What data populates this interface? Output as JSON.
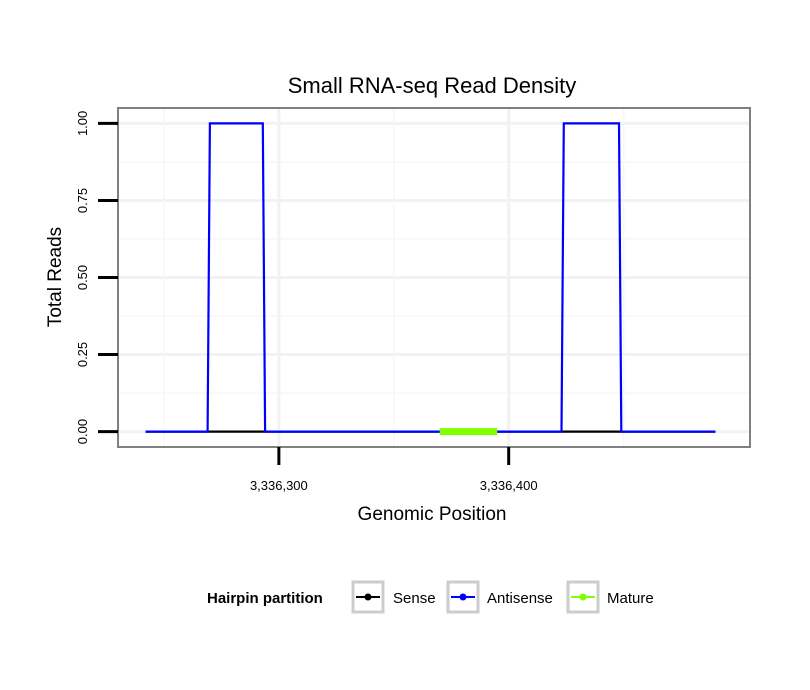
{
  "chart_data": {
    "type": "line",
    "title": "Small RNA-seq Read Density",
    "xlabel": "Genomic Position",
    "ylabel": "Total Reads",
    "xlim": [
      3336230,
      3336505
    ],
    "ylim": [
      -0.05,
      1.05
    ],
    "x_ticks": [
      3336300,
      3336400
    ],
    "x_tick_labels": [
      "3,336,300",
      "3,336,400"
    ],
    "y_ticks": [
      0,
      0.25,
      0.5,
      0.75,
      1.0
    ],
    "y_tick_labels": [
      "0.00",
      "0.25",
      "0.50",
      "0.75",
      "1.00"
    ],
    "grid": true,
    "legend": {
      "title": "Hairpin partition",
      "position": "bottom",
      "entries": [
        {
          "label": "Sense",
          "color": "#000000"
        },
        {
          "label": "Antisense",
          "color": "#0000ff"
        },
        {
          "label": "Mature",
          "color": "#7fff00"
        }
      ]
    },
    "series": [
      {
        "name": "Sense",
        "color": "#000000",
        "x": [
          3336242,
          3336490
        ],
        "y": [
          0,
          0
        ]
      },
      {
        "name": "Antisense",
        "color": "#0000ff",
        "x": [
          3336242,
          3336269,
          3336270,
          3336293,
          3336294,
          3336423,
          3336424,
          3336448,
          3336449,
          3336490
        ],
        "y": [
          0,
          0,
          1,
          1,
          0,
          0,
          1,
          1,
          0,
          0
        ]
      },
      {
        "name": "Mature",
        "color": "#7fff00",
        "x": [
          3336370,
          3336395
        ],
        "y": [
          0,
          0
        ]
      }
    ]
  }
}
